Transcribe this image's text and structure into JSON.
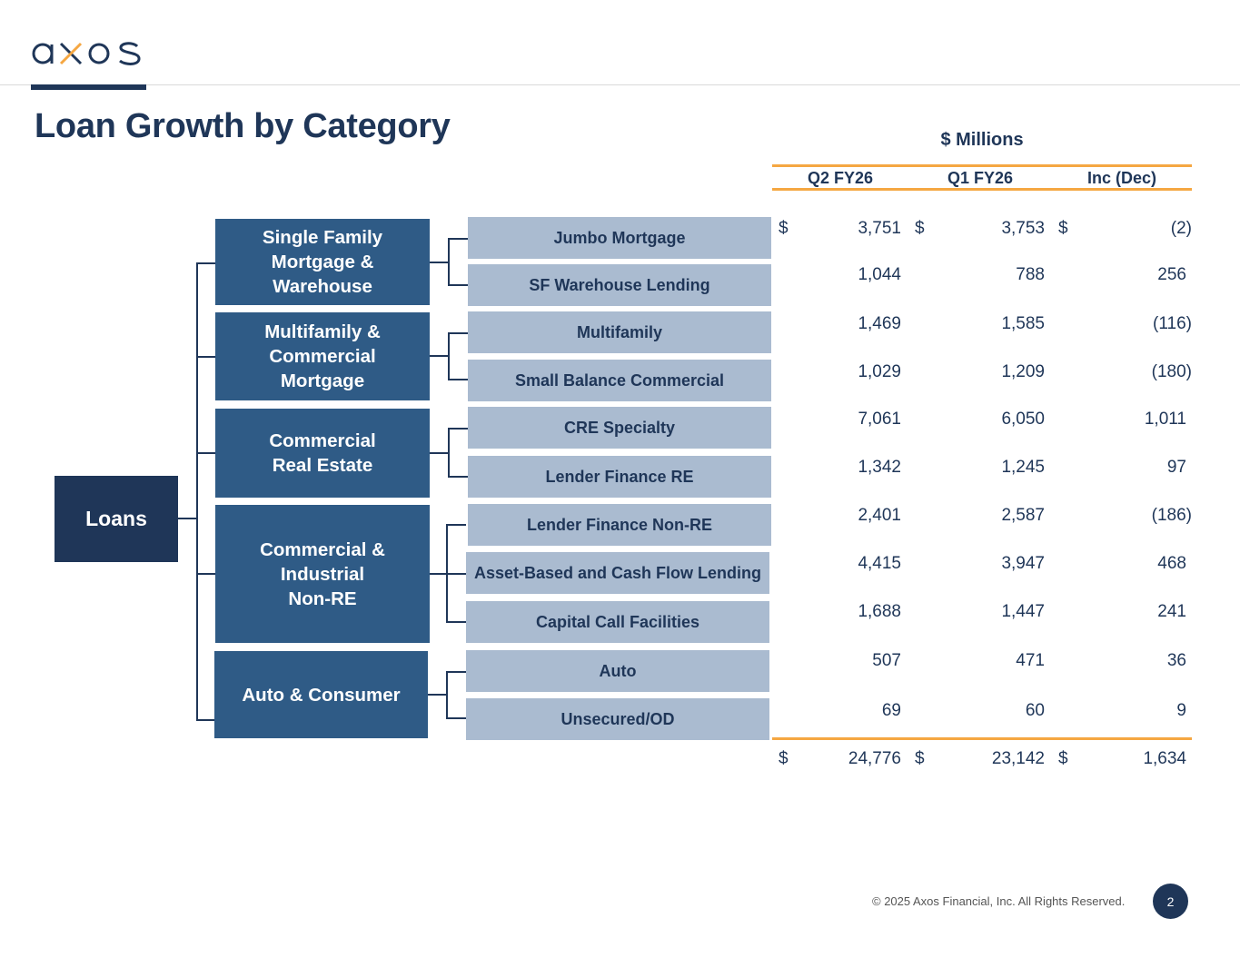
{
  "header": {
    "logo_text": "axos",
    "logo_tm": "™"
  },
  "title": "Loan Growth by Category",
  "table_units": "$ Millions",
  "columns": [
    "Q2 FY26",
    "Q1 FY26",
    "Inc (Dec)"
  ],
  "root_label": "Loans",
  "categories": [
    {
      "label": "Single Family\nMortgage &\nWarehouse"
    },
    {
      "label": "Multifamily &\nCommercial\nMortgage"
    },
    {
      "label": "Commercial\nReal Estate"
    },
    {
      "label": "Commercial &\nIndustrial\nNon-RE"
    },
    {
      "label": "Auto & Consumer"
    }
  ],
  "rows": [
    {
      "label": "Jumbo Mortgage",
      "q2": "3,751",
      "q1": "3,753",
      "chg": "(2)",
      "currency": "$"
    },
    {
      "label": "SF Warehouse Lending",
      "q2": "1,044",
      "q1": "788",
      "chg": "256"
    },
    {
      "label": "Multifamily",
      "q2": "1,469",
      "q1": "1,585",
      "chg": "(116)"
    },
    {
      "label": "Small Balance Commercial",
      "q2": "1,029",
      "q1": "1,209",
      "chg": "(180)"
    },
    {
      "label": "CRE Specialty",
      "q2": "7,061",
      "q1": "6,050",
      "chg": "1,011"
    },
    {
      "label": "Lender Finance RE",
      "q2": "1,342",
      "q1": "1,245",
      "chg": "97"
    },
    {
      "label": "Lender Finance Non-RE",
      "q2": "2,401",
      "q1": "2,587",
      "chg": "(186)"
    },
    {
      "label": "Asset-Based and Cash Flow Lending",
      "q2": "4,415",
      "q1": "3,947",
      "chg": "468"
    },
    {
      "label": "Capital Call Facilities",
      "q2": "1,688",
      "q1": "1,447",
      "chg": "241"
    },
    {
      "label": "Auto",
      "q2": "507",
      "q1": "471",
      "chg": "36"
    },
    {
      "label": "Unsecured/OD",
      "q2": "69",
      "q1": "60",
      "chg": "9"
    }
  ],
  "total": {
    "currency": "$",
    "q2": "24,776",
    "q1": "23,142",
    "chg": "1,634"
  },
  "footer": {
    "copyright": "© 2025 Axos Financial, Inc. All Rights Reserved.",
    "page_number": "2"
  },
  "colors": {
    "navy": "#1f3658",
    "category_blue": "#2f5b86",
    "sub_gray_blue": "#aabbd0",
    "accent_orange": "#f5a742"
  }
}
